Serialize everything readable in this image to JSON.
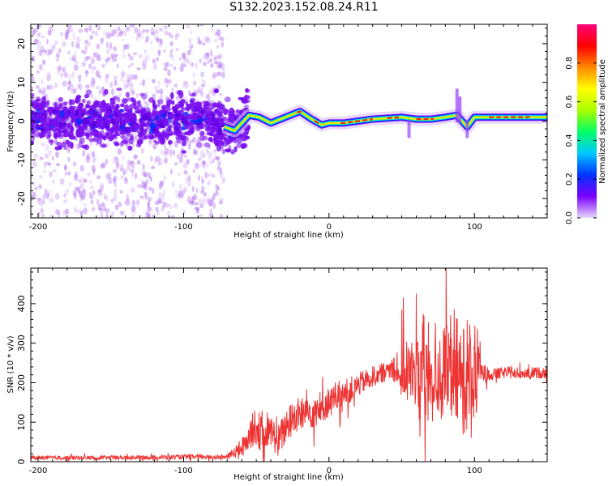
{
  "title": "S132.2023.152.08.24.R11",
  "chart_data": [
    {
      "type": "heatmap",
      "title": "",
      "xlabel": "Height of straight line (km)",
      "ylabel": "Frequency (Hz)",
      "xlim": [
        -205,
        150
      ],
      "ylim": [
        -25,
        25
      ],
      "xticks": [
        -200,
        -100,
        0,
        100
      ],
      "yticks": [
        -20,
        -10,
        0,
        10,
        20
      ],
      "colorbar": {
        "label": "Normalized spectral amplitude",
        "range": [
          0,
          1
        ],
        "ticks": [
          0.0,
          0.2,
          0.4,
          0.6,
          0.8
        ],
        "tick_labels": [
          "0.0",
          "0.2",
          "0.4",
          "0.6",
          "0.8"
        ],
        "colors": [
          "#e8d8fa",
          "#7a00ff",
          "#0033ff",
          "#00c8ff",
          "#00ff66",
          "#aaff00",
          "#ffff00",
          "#ff8800",
          "#ff0000",
          "#ff0077"
        ]
      },
      "ridge": {
        "x": [
          -205,
          -180,
          -150,
          -120,
          -90,
          -75,
          -65,
          -55,
          -48,
          -40,
          -30,
          -20,
          -12,
          -5,
          0,
          10,
          30,
          50,
          60,
          70,
          80,
          88,
          95,
          100,
          110,
          130,
          150
        ],
        "y": [
          0.5,
          0.0,
          0.5,
          -0.5,
          1.0,
          -1.0,
          -2.5,
          1.5,
          1.0,
          -0.5,
          1.0,
          2.5,
          0.5,
          -1.0,
          -0.5,
          -0.5,
          0.5,
          1.0,
          0.5,
          0.5,
          1.0,
          1.5,
          -1.5,
          1.0,
          1.0,
          1.0,
          1.0
        ]
      }
    },
    {
      "type": "line",
      "title": "",
      "xlabel": "Height of straight line (km)",
      "ylabel": "SNR (10 * v/v)",
      "xlim": [
        -205,
        150
      ],
      "ylim": [
        0,
        490
      ],
      "xticks": [
        -200,
        -100,
        0,
        100
      ],
      "yticks": [
        0,
        100,
        200,
        300,
        400
      ],
      "color": "#ee3333",
      "envelope": {
        "x": [
          -205,
          -150,
          -100,
          -80,
          -70,
          -60,
          -55,
          -50,
          -45,
          -40,
          -35,
          -30,
          -25,
          -20,
          -10,
          0,
          10,
          20,
          30,
          40,
          45,
          50,
          55,
          60,
          62,
          65,
          68,
          70,
          75,
          80,
          85,
          90,
          95,
          100,
          105,
          110,
          120,
          130,
          140,
          150
        ],
        "y": [
          10,
          10,
          12,
          12,
          12,
          35,
          70,
          90,
          60,
          80,
          50,
          85,
          110,
          120,
          130,
          150,
          170,
          195,
          215,
          230,
          240,
          240,
          225,
          220,
          240,
          220,
          215,
          220,
          215,
          220,
          225,
          220,
          225,
          220,
          225,
          220,
          225,
          225,
          225,
          225
        ]
      },
      "spread": {
        "x": [
          -205,
          -70,
          -60,
          -50,
          -40,
          -30,
          -20,
          -10,
          0,
          20,
          40,
          45,
          50,
          55,
          60,
          62,
          65,
          68,
          70,
          75,
          80,
          85,
          88,
          90,
          95,
          100,
          105,
          110,
          150
        ],
        "y": [
          5,
          6,
          25,
          50,
          40,
          45,
          45,
          45,
          40,
          30,
          25,
          40,
          80,
          90,
          110,
          200,
          160,
          150,
          80,
          110,
          130,
          120,
          150,
          160,
          150,
          130,
          30,
          15,
          15
        ]
      }
    }
  ]
}
